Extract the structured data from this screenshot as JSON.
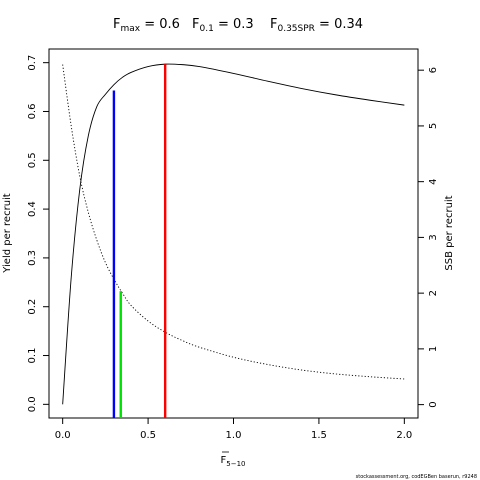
{
  "chart_data": {
    "type": "line",
    "title": {
      "fmax": {
        "main": "F",
        "sub": "max",
        "value": " = 0.6"
      },
      "f01": {
        "main": "F",
        "sub": "0.1",
        "value": " = 0.3"
      },
      "f035spr": {
        "main": "F",
        "sub": "0.35SPR",
        "value": " = 0.34"
      }
    },
    "xlabel": {
      "main": "F",
      "sub": "5−10"
    },
    "ylabel_left": "Yield per recruit",
    "ylabel_right": "SSB per recruit",
    "xlim": [
      -0.08,
      2.08
    ],
    "ylim_left": [
      -0.028,
      0.728
    ],
    "ylim_right": [
      -0.24,
      6.38
    ],
    "x_ticks": [
      "0.0",
      "0.5",
      "1.0",
      "1.5",
      "2.0"
    ],
    "y_ticks_left": [
      "0.0",
      "0.1",
      "0.2",
      "0.3",
      "0.4",
      "0.5",
      "0.6",
      "0.7"
    ],
    "y_ticks_right": [
      "0",
      "1",
      "2",
      "3",
      "4",
      "5",
      "6"
    ],
    "series": [
      {
        "axis": "left",
        "style": "solid",
        "color": "#000000",
        "x": [
          0,
          0.05,
          0.1,
          0.15,
          0.2,
          0.25,
          0.3,
          0.35,
          0.4,
          0.5,
          0.6,
          0.7,
          0.8,
          1.0,
          1.2,
          1.4,
          1.6,
          1.8,
          2.0
        ],
        "y": [
          0.0,
          0.26,
          0.44,
          0.55,
          0.61,
          0.635,
          0.655,
          0.67,
          0.68,
          0.692,
          0.697,
          0.696,
          0.692,
          0.678,
          0.662,
          0.647,
          0.634,
          0.623,
          0.613
        ]
      },
      {
        "axis": "right",
        "style": "dotted",
        "color": "#000000",
        "x": [
          0,
          0.05,
          0.1,
          0.15,
          0.2,
          0.25,
          0.3,
          0.35,
          0.4,
          0.5,
          0.6,
          0.7,
          0.8,
          1.0,
          1.2,
          1.4,
          1.6,
          1.8,
          2.0
        ],
        "y": [
          6.1,
          5.0,
          4.1,
          3.45,
          2.95,
          2.55,
          2.25,
          2.0,
          1.78,
          1.5,
          1.3,
          1.15,
          1.03,
          0.85,
          0.72,
          0.62,
          0.55,
          0.5,
          0.46
        ]
      }
    ],
    "reference_lines": [
      {
        "name": "F0.1",
        "x": 0.3,
        "y_top": 0.643,
        "color": "#0000ff"
      },
      {
        "name": "F0.35SPR",
        "x": 0.34,
        "y_top": 0.232,
        "color": "#00e000"
      },
      {
        "name": "Fmax",
        "x": 0.6,
        "y_top": 0.697,
        "color": "#ff0000"
      }
    ]
  },
  "footer": "stockassessment.org, codEGBen baserun, r9248"
}
